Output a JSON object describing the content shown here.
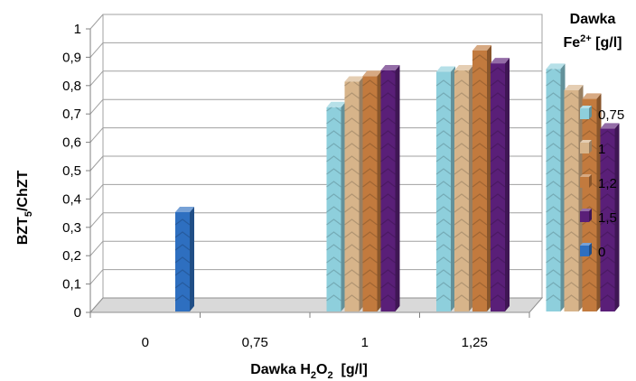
{
  "chart_data": {
    "type": "bar",
    "categories": [
      "0",
      "0,75",
      "1",
      "1,25"
    ],
    "series": [
      {
        "name": "0,75",
        "values": [
          null,
          0.73,
          0.855,
          0.865
        ],
        "color": "#8ecfdc"
      },
      {
        "name": "1",
        "values": [
          null,
          0.82,
          0.86,
          0.79
        ],
        "color": "#d7b48a"
      },
      {
        "name": "1,2",
        "values": [
          null,
          0.84,
          0.93,
          0.76
        ],
        "color": "#c27a3e"
      },
      {
        "name": "1,5",
        "values": [
          null,
          0.86,
          0.885,
          0.655
        ],
        "color": "#5a1f78"
      },
      {
        "name": "0",
        "values": [
          0.36,
          null,
          null,
          null
        ],
        "color": "#2e6fc0"
      }
    ],
    "y_ticks": [
      "0",
      "0,1",
      "0,2",
      "0,3",
      "0,4",
      "0,5",
      "0,6",
      "0,7",
      "0,8",
      "0,9",
      "1"
    ],
    "ylim": [
      0,
      1
    ],
    "ylabel": {
      "main": "BZT",
      "sub": "5",
      "rest": "/ChZT"
    },
    "xlabel": {
      "main": "Dawka H",
      "sub": "2",
      "mid": "O",
      "sub2": "2",
      "rest": "  [g/l]"
    },
    "legend_title": {
      "line1": "Dawka",
      "line2_main": "Fe",
      "line2_sup": "2+",
      "line2_rest": " [g/l]"
    },
    "legend_position": "right",
    "grid": true
  }
}
